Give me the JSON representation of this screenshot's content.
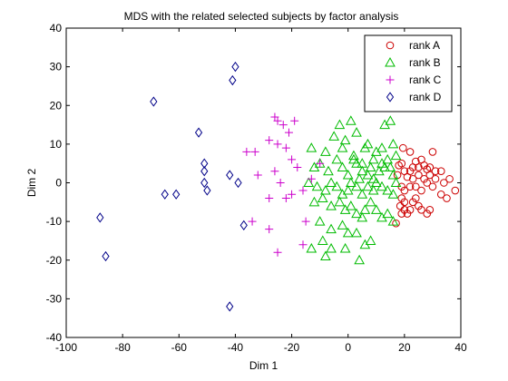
{
  "chart_data": {
    "type": "scatter",
    "title": "MDS with the related selected subjects by factor analysis",
    "xlabel": "Dim 1",
    "ylabel": "Dim 2",
    "xlim": [
      -100,
      40
    ],
    "ylim": [
      -40,
      40
    ],
    "xticks": [
      -100,
      -80,
      -60,
      -40,
      -20,
      0,
      20,
      40
    ],
    "yticks": [
      -40,
      -30,
      -20,
      -10,
      0,
      10,
      20,
      30,
      40
    ],
    "grid": false,
    "legend_position": "top-right",
    "series": [
      {
        "name": "rank A",
        "marker": "circle",
        "color": "#cc0000",
        "points": [
          [
            19.5,
            9
          ],
          [
            22,
            8
          ],
          [
            19,
            5
          ],
          [
            18,
            4.5
          ],
          [
            17.5,
            2
          ],
          [
            20,
            3
          ],
          [
            21,
            1.5
          ],
          [
            22,
            3
          ],
          [
            23,
            4
          ],
          [
            24,
            5.5
          ],
          [
            25,
            4
          ],
          [
            26,
            6
          ],
          [
            27,
            4.5
          ],
          [
            28,
            3.5
          ],
          [
            29,
            4
          ],
          [
            30,
            8
          ],
          [
            31,
            3
          ],
          [
            33,
            3
          ],
          [
            34,
            0
          ],
          [
            36,
            1
          ],
          [
            38,
            -2
          ],
          [
            23,
            1
          ],
          [
            25,
            2
          ],
          [
            27,
            1
          ],
          [
            29,
            2
          ],
          [
            31,
            1
          ],
          [
            19,
            -1
          ],
          [
            20,
            -2
          ],
          [
            22,
            -1
          ],
          [
            24,
            -1
          ],
          [
            26,
            -2
          ],
          [
            28,
            0
          ],
          [
            30,
            -1
          ],
          [
            33,
            -3
          ],
          [
            35,
            -4
          ],
          [
            19,
            -4
          ],
          [
            20,
            -5
          ],
          [
            18.5,
            -6
          ],
          [
            20,
            -7
          ],
          [
            21,
            -8
          ],
          [
            23,
            -5
          ],
          [
            24,
            -4
          ],
          [
            25,
            -6
          ],
          [
            26,
            -7
          ],
          [
            28,
            -8
          ],
          [
            29,
            -7
          ],
          [
            22,
            -7
          ],
          [
            19,
            -8
          ],
          [
            17,
            -10.5
          ]
        ]
      },
      {
        "name": "rank B",
        "marker": "triangle",
        "color": "#00bb00",
        "points": [
          [
            -13,
            9
          ],
          [
            -8,
            8
          ],
          [
            -5,
            12
          ],
          [
            -3,
            15
          ],
          [
            -2,
            9
          ],
          [
            -1,
            11
          ],
          [
            1,
            16
          ],
          [
            2,
            7
          ],
          [
            3,
            13
          ],
          [
            5,
            5
          ],
          [
            6,
            9
          ],
          [
            7,
            10
          ],
          [
            9,
            6
          ],
          [
            10,
            8
          ],
          [
            12,
            9
          ],
          [
            13,
            15
          ],
          [
            15,
            16
          ],
          [
            16,
            10
          ],
          [
            17,
            7
          ],
          [
            -12,
            4
          ],
          [
            -10,
            5
          ],
          [
            -7,
            3
          ],
          [
            -4,
            6
          ],
          [
            -2,
            4
          ],
          [
            0,
            2
          ],
          [
            2,
            6
          ],
          [
            3,
            5
          ],
          [
            4,
            1
          ],
          [
            5,
            3
          ],
          [
            7,
            2
          ],
          [
            8,
            4
          ],
          [
            9,
            1
          ],
          [
            11,
            3
          ],
          [
            12,
            5
          ],
          [
            13,
            4
          ],
          [
            14,
            6
          ],
          [
            15,
            4
          ],
          [
            16,
            2
          ],
          [
            17,
            0
          ],
          [
            -14,
            0
          ],
          [
            -11,
            -1
          ],
          [
            -8,
            -2
          ],
          [
            -6,
            0
          ],
          [
            -4,
            -1
          ],
          [
            -2,
            -3
          ],
          [
            0,
            -2
          ],
          [
            1,
            0
          ],
          [
            3,
            -1
          ],
          [
            5,
            -3
          ],
          [
            7,
            -1
          ],
          [
            9,
            -2
          ],
          [
            10,
            0
          ],
          [
            12,
            -1
          ],
          [
            14,
            -2
          ],
          [
            16,
            -3
          ],
          [
            -12,
            -5
          ],
          [
            -9,
            -4
          ],
          [
            -6,
            -6
          ],
          [
            -3,
            -5
          ],
          [
            -1,
            -7
          ],
          [
            1,
            -6
          ],
          [
            3,
            -8
          ],
          [
            5,
            -9
          ],
          [
            6,
            -7
          ],
          [
            8,
            -5
          ],
          [
            10,
            -7
          ],
          [
            12,
            -9
          ],
          [
            14,
            -8
          ],
          [
            16,
            -10
          ],
          [
            -10,
            -10
          ],
          [
            -6,
            -12
          ],
          [
            -2,
            -11
          ],
          [
            0,
            -13
          ],
          [
            3,
            -13
          ],
          [
            6,
            -16
          ],
          [
            8,
            -15
          ],
          [
            -9,
            -15
          ],
          [
            -6,
            -17
          ],
          [
            -1,
            -17
          ],
          [
            4,
            -20
          ],
          [
            -13,
            -17
          ],
          [
            -8,
            -19
          ]
        ]
      },
      {
        "name": "rank C",
        "marker": "plus",
        "color": "#cc00cc",
        "points": [
          [
            -26,
            17
          ],
          [
            -25,
            16
          ],
          [
            -19,
            16
          ],
          [
            -23,
            15
          ],
          [
            -21,
            13
          ],
          [
            -28,
            11
          ],
          [
            -25,
            10
          ],
          [
            -22,
            9
          ],
          [
            -36,
            8
          ],
          [
            -33,
            8
          ],
          [
            -20,
            6
          ],
          [
            -10,
            5
          ],
          [
            -18,
            4
          ],
          [
            -26,
            3
          ],
          [
            -32,
            2
          ],
          [
            -13,
            1
          ],
          [
            -24,
            0
          ],
          [
            -28,
            -4
          ],
          [
            -22,
            -4
          ],
          [
            -20,
            -3
          ],
          [
            -16,
            -2
          ],
          [
            -34,
            -10
          ],
          [
            -15,
            -10
          ],
          [
            -28,
            -12
          ],
          [
            -16,
            -16
          ],
          [
            -25,
            -18
          ]
        ]
      },
      {
        "name": "rank D",
        "marker": "diamond",
        "color": "#000088",
        "points": [
          [
            -40,
            30
          ],
          [
            -41,
            26.5
          ],
          [
            -69,
            21
          ],
          [
            -53,
            13
          ],
          [
            -51,
            5
          ],
          [
            -51,
            3
          ],
          [
            -42,
            2
          ],
          [
            -39,
            0
          ],
          [
            -51,
            0
          ],
          [
            -50,
            -2
          ],
          [
            -61,
            -3
          ],
          [
            -65,
            -3
          ],
          [
            -37,
            -11
          ],
          [
            -88,
            -9
          ],
          [
            -86,
            -19
          ],
          [
            -42,
            -32
          ]
        ]
      }
    ]
  }
}
